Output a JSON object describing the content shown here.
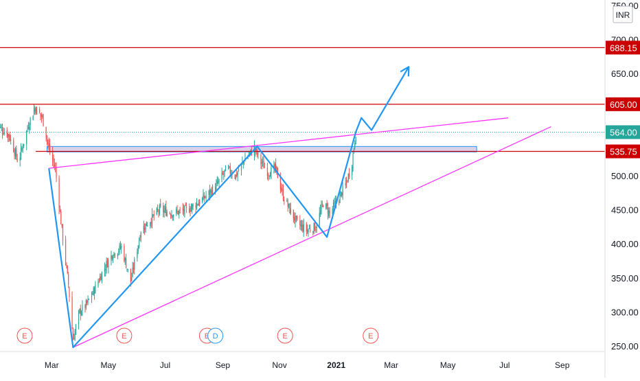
{
  "currency": "INR",
  "colors": {
    "background": "#ffffff",
    "up_candle": "#26a69a",
    "down_candle": "#ef5350",
    "horizontal_level": "#cc0000",
    "trendline": "#ff33ff",
    "projection": "#2196f3",
    "zone_fill": "#d9d2e9",
    "zone_border": "#2196f3",
    "current_price": "#26a69a",
    "earnings_marker": "#ef5350",
    "dividend_marker": "#2196f3"
  },
  "chart_data": {
    "type": "candlestick",
    "currency": "INR",
    "x_ticks": [
      "Mar",
      "May",
      "Jul",
      "Sep",
      "Nov",
      "2021",
      "Mar",
      "May",
      "Jul",
      "Sep"
    ],
    "y_ticks": [
      "250.00",
      "300.00",
      "350.00",
      "400.00",
      "450.00",
      "500.00",
      "650.00",
      "700.00",
      "750.00"
    ],
    "ylim": [
      245,
      760
    ],
    "x_range": [
      "2020-01-01",
      "2021-09-30"
    ],
    "grid": false,
    "price_closes": [
      [
        "2020-01-01",
        575
      ],
      [
        "2020-01-15",
        560
      ],
      [
        "2020-01-25",
        520
      ],
      [
        "2020-02-05",
        575
      ],
      [
        "2020-02-12",
        600
      ],
      [
        "2020-02-20",
        585
      ],
      [
        "2020-02-28",
        535
      ],
      [
        "2020-03-05",
        510
      ],
      [
        "2020-03-12",
        420
      ],
      [
        "2020-03-19",
        340
      ],
      [
        "2020-03-24",
        260
      ],
      [
        "2020-03-31",
        300
      ],
      [
        "2020-04-07",
        310
      ],
      [
        "2020-04-15",
        330
      ],
      [
        "2020-04-25",
        360
      ],
      [
        "2020-05-05",
        385
      ],
      [
        "2020-05-15",
        395
      ],
      [
        "2020-05-25",
        345
      ],
      [
        "2020-06-05",
        420
      ],
      [
        "2020-06-15",
        435
      ],
      [
        "2020-06-25",
        450
      ],
      [
        "2020-07-10",
        445
      ],
      [
        "2020-07-25",
        450
      ],
      [
        "2020-08-10",
        465
      ],
      [
        "2020-08-25",
        485
      ],
      [
        "2020-09-05",
        510
      ],
      [
        "2020-09-15",
        500
      ],
      [
        "2020-09-25",
        525
      ],
      [
        "2020-10-05",
        540
      ],
      [
        "2020-10-12",
        520
      ],
      [
        "2020-10-20",
        505
      ],
      [
        "2020-10-28",
        510
      ],
      [
        "2020-11-05",
        470
      ],
      [
        "2020-11-12",
        450
      ],
      [
        "2020-11-20",
        430
      ],
      [
        "2020-11-30",
        420
      ],
      [
        "2020-12-10",
        425
      ],
      [
        "2020-12-18",
        460
      ],
      [
        "2020-12-25",
        445
      ],
      [
        "2021-01-05",
        470
      ],
      [
        "2021-01-12",
        490
      ],
      [
        "2021-01-18",
        520
      ],
      [
        "2021-01-22",
        564
      ]
    ],
    "current_price": 564.0,
    "horizontal_levels": [
      688.15,
      605.0,
      535.75
    ],
    "price_labels": [
      "688.15",
      "605.00",
      "564.00",
      "535.75"
    ],
    "supply_zone": {
      "x_start": "2020-02-25",
      "x_end": "2021-06-01",
      "y_low": 535,
      "y_high": 543
    },
    "trendlines": [
      {
        "name": "upper",
        "from": [
          "2020-02-27",
          511
        ],
        "to": [
          "2021-07-05",
          585
        ]
      },
      {
        "name": "lower",
        "from": [
          "2020-03-24",
          248
        ],
        "to": [
          "2021-08-20",
          572
        ]
      }
    ],
    "projection_path": [
      [
        "2020-02-27",
        511
      ],
      [
        "2020-03-24",
        248
      ],
      [
        "2020-10-08",
        543
      ],
      [
        "2020-12-22",
        410
      ],
      [
        "2021-01-22",
        564
      ],
      [
        "2021-01-28",
        585
      ],
      [
        "2021-02-08",
        567
      ],
      [
        "2021-03-20",
        660
      ]
    ],
    "events": [
      {
        "date": "2020-02-01",
        "label": "E",
        "kind": "earnings"
      },
      {
        "date": "2020-05-18",
        "label": "E",
        "kind": "earnings"
      },
      {
        "date": "2020-08-15",
        "label": "E",
        "kind": "earnings"
      },
      {
        "date": "2020-08-24",
        "label": "D",
        "kind": "dividend"
      },
      {
        "date": "2020-11-07",
        "label": "E",
        "kind": "earnings"
      },
      {
        "date": "2021-02-07",
        "label": "E",
        "kind": "earnings"
      }
    ]
  }
}
